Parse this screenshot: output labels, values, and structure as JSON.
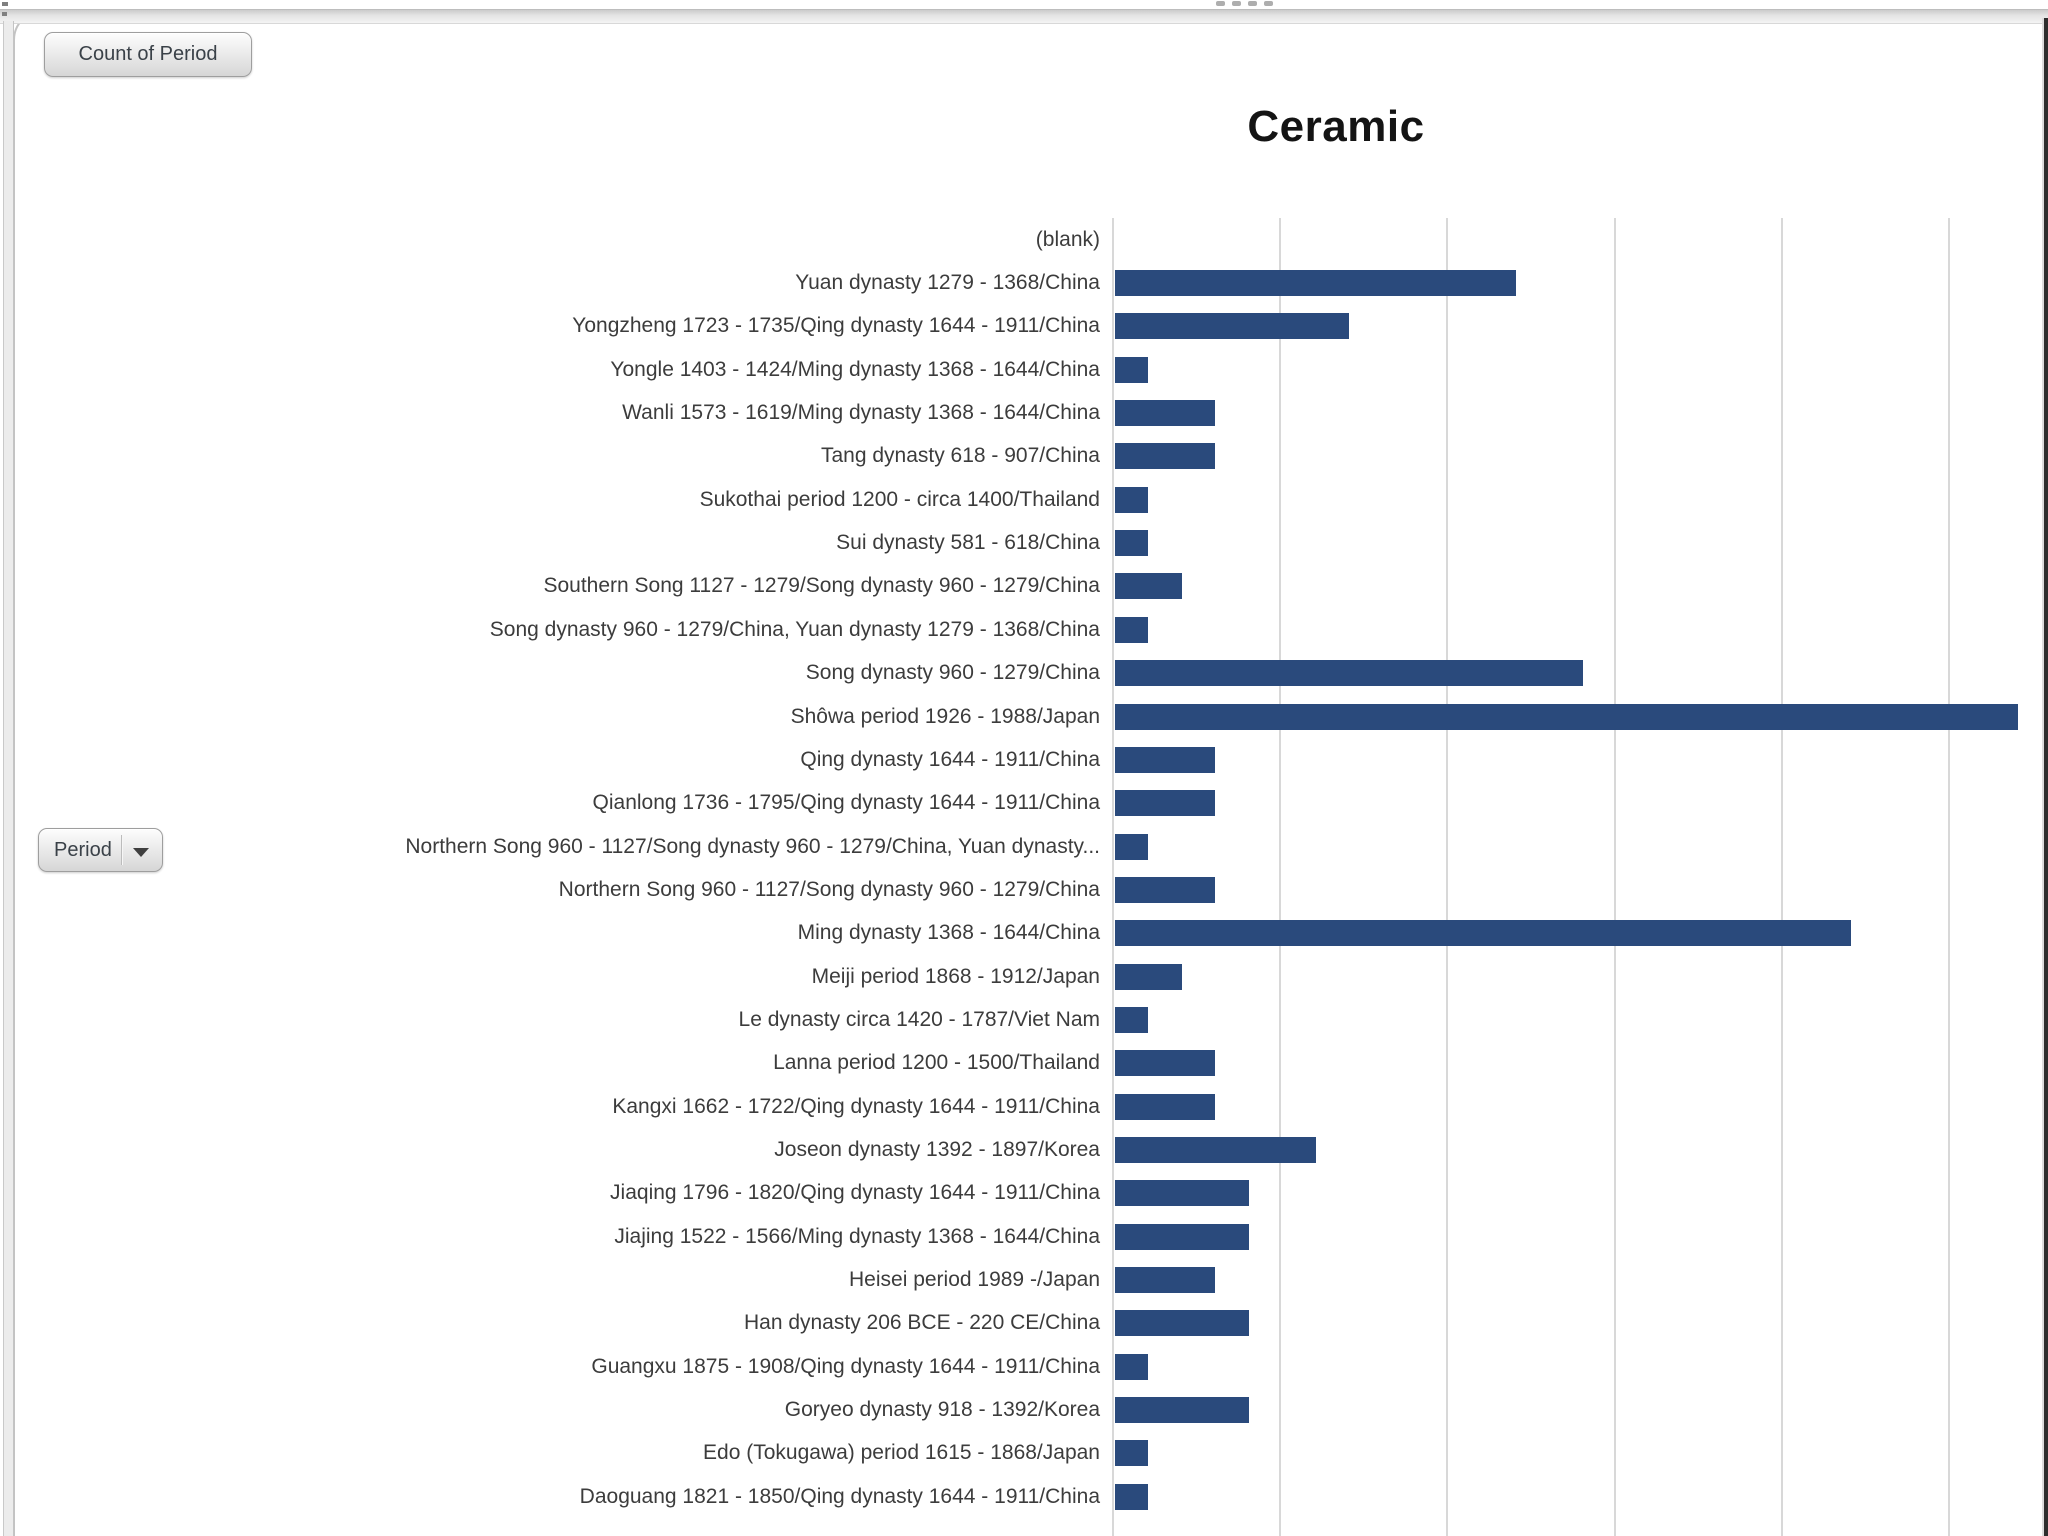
{
  "chrome": {
    "handle_dots_count": 4
  },
  "pivot_buttons": {
    "value_field_label": "Count of Period",
    "axis_field_label": "Period"
  },
  "chart_data": {
    "type": "bar",
    "orientation": "horizontal",
    "title": "Ceramic",
    "value_field": "Count of Period",
    "category_field": "Period",
    "legend": false,
    "grid": true,
    "value_axis_visible": false,
    "gridline_interval": 5,
    "xlim": [
      0,
      30
    ],
    "bar_color": "#2a4a7c",
    "gridline_color": "#d8d8d8",
    "categories": [
      "(blank)",
      "Yuan dynasty 1279 - 1368/China",
      "Yongzheng 1723 - 1735/Qing dynasty 1644 - 1911/China",
      "Yongle 1403 - 1424/Ming dynasty 1368 - 1644/China",
      "Wanli 1573 - 1619/Ming dynasty 1368 - 1644/China",
      "Tang dynasty 618 - 907/China",
      "Sukothai period 1200 - circa 1400/Thailand",
      "Sui dynasty 581 - 618/China",
      "Southern Song 1127 - 1279/Song dynasty 960 - 1279/China",
      "Song dynasty 960 - 1279/China, Yuan dynasty 1279 - 1368/China",
      "Song dynasty 960 - 1279/China",
      "Shôwa period 1926 - 1988/Japan",
      "Qing dynasty 1644 - 1911/China",
      "Qianlong 1736 - 1795/Qing dynasty 1644 - 1911/China",
      "Northern Song 960 - 1127/Song dynasty 960 - 1279/China, Yuan dynasty...",
      "Northern Song 960 - 1127/Song dynasty 960 - 1279/China",
      "Ming dynasty 1368 - 1644/China",
      "Meiji period 1868 - 1912/Japan",
      "Le dynasty circa 1420 - 1787/Viet Nam",
      "Lanna period 1200 - 1500/Thailand",
      "Kangxi 1662 - 1722/Qing dynasty 1644 - 1911/China",
      "Joseon dynasty 1392 - 1897/Korea",
      "Jiaqing 1796 - 1820/Qing dynasty 1644 - 1911/China",
      "Jiajing 1522 - 1566/Ming dynasty 1368 - 1644/China",
      "Heisei period 1989 -/Japan",
      "Han dynasty 206 BCE - 220 CE/China",
      "Guangxu 1875 - 1908/Qing dynasty 1644 - 1911/China",
      "Goryeo dynasty 918 - 1392/Korea",
      "Edo (Tokugawa) period 1615 - 1868/Japan",
      "Daoguang 1821 - 1850/Qing dynasty 1644 - 1911/China"
    ],
    "values": [
      0,
      12,
      7,
      1,
      3,
      3,
      1,
      1,
      2,
      1,
      14,
      27,
      3,
      3,
      1,
      3,
      22,
      2,
      1,
      3,
      3,
      6,
      4,
      4,
      3,
      4,
      1,
      4,
      1,
      1
    ]
  }
}
